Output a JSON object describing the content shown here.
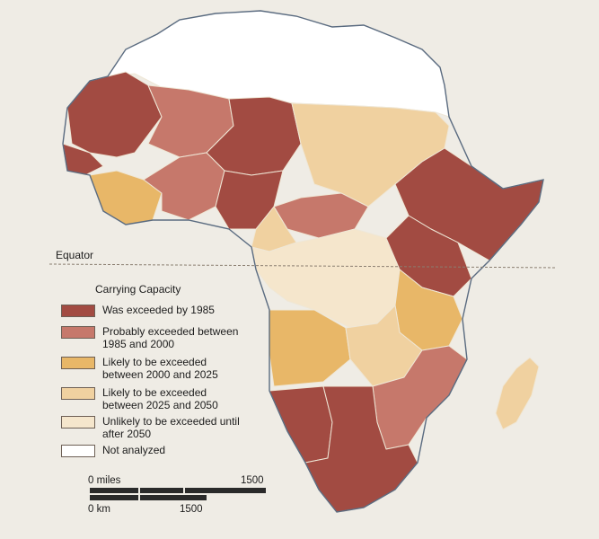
{
  "map": {
    "equator_label": "Equator",
    "legend": {
      "title": "Carrying Capacity",
      "items": [
        {
          "label": "Was exceeded by 1985",
          "color": "#a24b42"
        },
        {
          "label": "Probably exceeded between\n1985 and 2000",
          "color": "#c6786b"
        },
        {
          "label": "Likely to be exceeded\nbetween 2000 and 2025",
          "color": "#e8b768"
        },
        {
          "label": "Likely to be exceeded\nbetween 2025 and 2050",
          "color": "#f0d1a0"
        },
        {
          "label": "Unlikely to be exceeded until\nafter 2050",
          "color": "#f5e6cc"
        },
        {
          "label": "Not analyzed",
          "color": "#ffffff"
        }
      ]
    },
    "scale": {
      "miles_zero": "0 miles",
      "miles_max": "1500",
      "km_zero": "0 km",
      "km_max": "1500"
    },
    "colors": {
      "background": "#efece5",
      "water_border": "#5a6b80"
    }
  }
}
